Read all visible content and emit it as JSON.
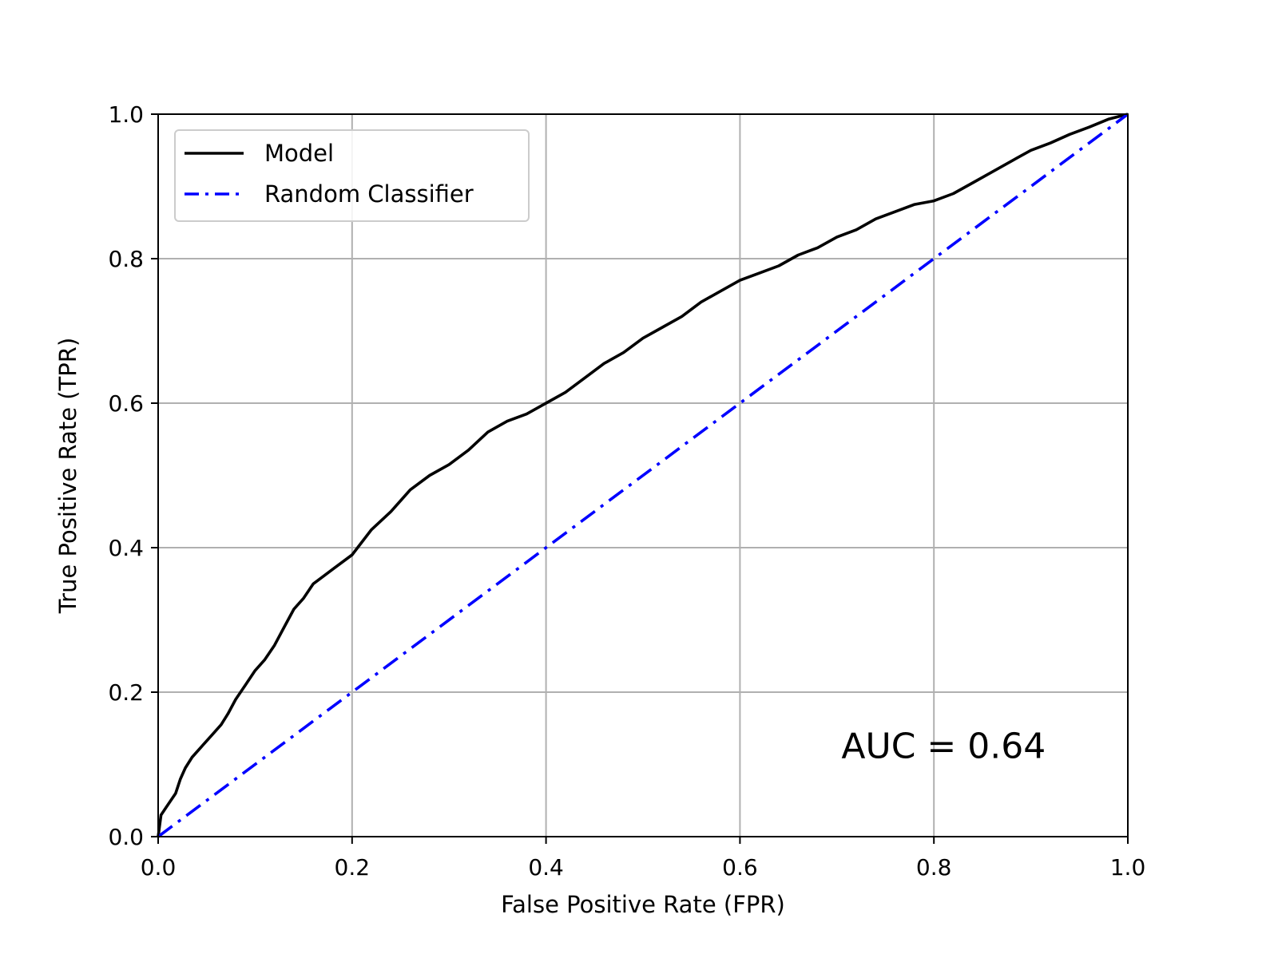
{
  "chart_data": {
    "type": "line",
    "xlabel": "False Positive Rate (FPR)",
    "ylabel": "True Positive Rate (TPR)",
    "xlim": [
      0,
      1
    ],
    "ylim": [
      0,
      1
    ],
    "xticks": [
      "0.0",
      "0.2",
      "0.4",
      "0.6",
      "0.8",
      "1.0"
    ],
    "yticks": [
      "0.0",
      "0.2",
      "0.4",
      "0.6",
      "0.8",
      "1.0"
    ],
    "grid": true,
    "legend_position": "top-left",
    "annotation": "AUC = 0.64",
    "series": [
      {
        "name": "Model",
        "color": "#000000",
        "style": "solid",
        "x": [
          0.0,
          0.003,
          0.008,
          0.013,
          0.018,
          0.023,
          0.028,
          0.035,
          0.045,
          0.055,
          0.065,
          0.072,
          0.08,
          0.09,
          0.1,
          0.11,
          0.12,
          0.13,
          0.14,
          0.15,
          0.16,
          0.17,
          0.18,
          0.2,
          0.22,
          0.24,
          0.26,
          0.28,
          0.3,
          0.32,
          0.34,
          0.36,
          0.38,
          0.4,
          0.42,
          0.44,
          0.46,
          0.48,
          0.5,
          0.52,
          0.54,
          0.56,
          0.58,
          0.6,
          0.62,
          0.64,
          0.66,
          0.68,
          0.7,
          0.72,
          0.74,
          0.76,
          0.78,
          0.8,
          0.82,
          0.84,
          0.86,
          0.88,
          0.9,
          0.92,
          0.94,
          0.96,
          0.98,
          1.0
        ],
        "y": [
          0.0,
          0.03,
          0.04,
          0.05,
          0.06,
          0.08,
          0.095,
          0.11,
          0.125,
          0.14,
          0.155,
          0.17,
          0.19,
          0.21,
          0.23,
          0.245,
          0.265,
          0.29,
          0.315,
          0.33,
          0.35,
          0.36,
          0.37,
          0.39,
          0.425,
          0.45,
          0.48,
          0.5,
          0.515,
          0.535,
          0.56,
          0.575,
          0.585,
          0.6,
          0.615,
          0.635,
          0.655,
          0.67,
          0.69,
          0.705,
          0.72,
          0.74,
          0.755,
          0.77,
          0.78,
          0.79,
          0.805,
          0.815,
          0.83,
          0.84,
          0.855,
          0.865,
          0.875,
          0.88,
          0.89,
          0.905,
          0.92,
          0.935,
          0.95,
          0.96,
          0.972,
          0.982,
          0.993,
          1.0
        ]
      },
      {
        "name": "Random Classifier",
        "color": "#0000ff",
        "style": "dashdot",
        "x": [
          0,
          1
        ],
        "y": [
          0,
          1
        ]
      }
    ]
  }
}
